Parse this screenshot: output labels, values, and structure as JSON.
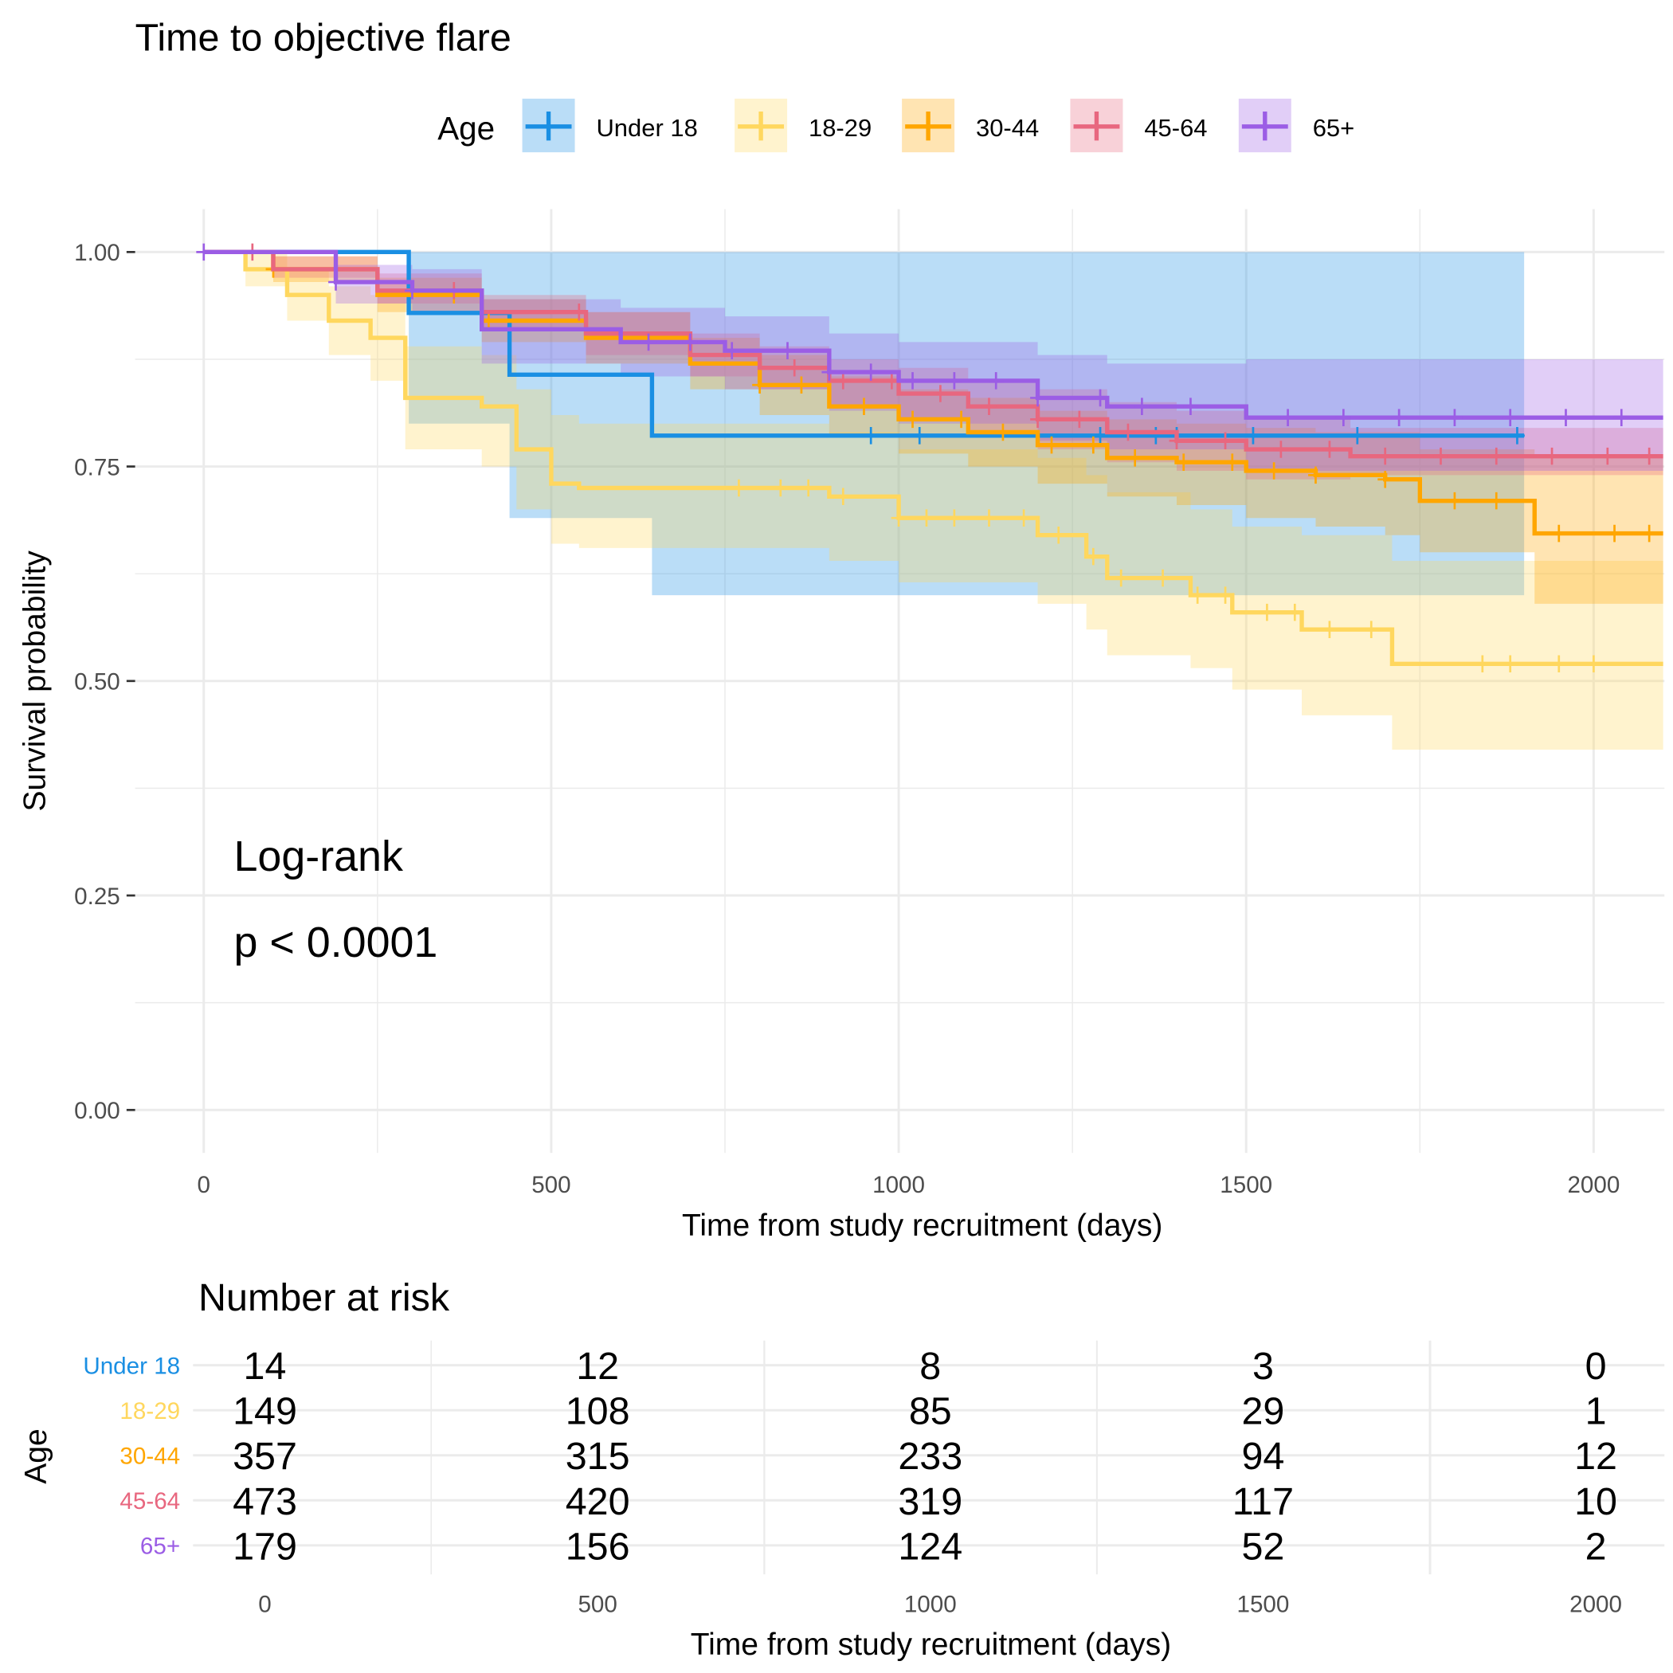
{
  "chart_data": {
    "type": "line",
    "title": "Time to objective flare",
    "xlabel": "Time from study recruitment (days)",
    "ylabel": "Survival probability",
    "xlim": [
      0,
      2100
    ],
    "ylim": [
      0,
      1
    ],
    "x_ticks": [
      "0",
      "500",
      "1000",
      "1500",
      "2000"
    ],
    "x_tick_values": [
      0,
      500,
      1000,
      1500,
      2000
    ],
    "y_ticks": [
      "0.00",
      "0.25",
      "0.50",
      "0.75",
      "1.00"
    ],
    "y_tick_values": [
      0,
      0.25,
      0.5,
      0.75,
      1
    ],
    "grid": true,
    "legend": {
      "title": "Age",
      "placement": "top"
    },
    "annotation": {
      "line1": "Log-rank",
      "line2": "p < 0.0001"
    },
    "series": [
      {
        "name": "Under 18",
        "color": "#1a8fe3",
        "t": [
          0,
          295,
          440,
          645,
          1900
        ],
        "s": [
          1.0,
          0.929,
          0.857,
          0.786,
          0.786
        ],
        "lo": [
          1.0,
          0.8,
          0.69,
          0.6,
          0.6
        ],
        "hi": [
          1.0,
          1.0,
          1.0,
          1.0,
          1.0
        ],
        "censor": [
          960,
          1030,
          1290,
          1370,
          1400,
          1510,
          1660,
          1890
        ]
      },
      {
        "name": "18-29",
        "color": "#ffd75e",
        "t": [
          0,
          60,
          120,
          180,
          240,
          290,
          400,
          450,
          500,
          540,
          900,
          1000,
          1200,
          1270,
          1300,
          1420,
          1480,
          1580,
          1710,
          2100
        ],
        "s": [
          1.0,
          0.98,
          0.95,
          0.92,
          0.9,
          0.83,
          0.82,
          0.77,
          0.73,
          0.725,
          0.715,
          0.69,
          0.67,
          0.645,
          0.62,
          0.6,
          0.58,
          0.56,
          0.52,
          0.52
        ],
        "lo": [
          1.0,
          0.96,
          0.92,
          0.88,
          0.85,
          0.77,
          0.75,
          0.7,
          0.66,
          0.655,
          0.64,
          0.615,
          0.59,
          0.56,
          0.53,
          0.515,
          0.49,
          0.46,
          0.42,
          0.42
        ],
        "hi": [
          1.0,
          1.0,
          0.98,
          0.96,
          0.95,
          0.89,
          0.88,
          0.84,
          0.81,
          0.8,
          0.79,
          0.77,
          0.76,
          0.74,
          0.72,
          0.7,
          0.68,
          0.67,
          0.64,
          0.64
        ],
        "censor": [
          770,
          830,
          870,
          920,
          1000,
          1040,
          1080,
          1130,
          1180,
          1230,
          1280,
          1320,
          1380,
          1430,
          1470,
          1530,
          1570,
          1620,
          1680,
          1840,
          1880,
          1950,
          2000
        ]
      },
      {
        "name": "30-44",
        "color": "#ffa600",
        "t": [
          0,
          100,
          250,
          400,
          550,
          700,
          800,
          900,
          1000,
          1100,
          1200,
          1300,
          1400,
          1500,
          1600,
          1700,
          1750,
          1915,
          2100
        ],
        "s": [
          1.0,
          0.98,
          0.95,
          0.92,
          0.9,
          0.87,
          0.845,
          0.82,
          0.805,
          0.79,
          0.775,
          0.76,
          0.755,
          0.745,
          0.74,
          0.735,
          0.71,
          0.672,
          0.672
        ],
        "lo": [
          1.0,
          0.965,
          0.93,
          0.895,
          0.87,
          0.84,
          0.81,
          0.785,
          0.765,
          0.75,
          0.73,
          0.715,
          0.705,
          0.69,
          0.68,
          0.67,
          0.65,
          0.59,
          0.59
        ],
        "hi": [
          1.0,
          0.995,
          0.97,
          0.945,
          0.93,
          0.9,
          0.88,
          0.855,
          0.84,
          0.83,
          0.815,
          0.805,
          0.8,
          0.795,
          0.79,
          0.79,
          0.77,
          0.76,
          0.76
        ],
        "censor": [
          100,
          360,
          410,
          800,
          860,
          950,
          1020,
          1090,
          1150,
          1220,
          1280,
          1340,
          1410,
          1480,
          1540,
          1600,
          1700,
          1800,
          1860,
          1950,
          2030,
          2080
        ]
      },
      {
        "name": "45-64",
        "color": "#e8677f",
        "t": [
          0,
          100,
          250,
          400,
          550,
          700,
          800,
          900,
          1000,
          1100,
          1200,
          1300,
          1400,
          1500,
          1650,
          2100
        ],
        "s": [
          1.0,
          0.98,
          0.955,
          0.93,
          0.905,
          0.88,
          0.865,
          0.85,
          0.835,
          0.82,
          0.805,
          0.79,
          0.78,
          0.77,
          0.762,
          0.762
        ],
        "lo": [
          1.0,
          0.97,
          0.94,
          0.91,
          0.88,
          0.855,
          0.84,
          0.82,
          0.805,
          0.79,
          0.77,
          0.755,
          0.745,
          0.735,
          0.74,
          0.74
        ],
        "hi": [
          1.0,
          0.995,
          0.975,
          0.95,
          0.93,
          0.905,
          0.89,
          0.875,
          0.865,
          0.85,
          0.84,
          0.825,
          0.815,
          0.805,
          0.795,
          0.795
        ],
        "censor": [
          70,
          190,
          360,
          540,
          850,
          920,
          990,
          1060,
          1130,
          1200,
          1260,
          1330,
          1400,
          1470,
          1550,
          1620,
          1700,
          1780,
          1860,
          1940,
          2020,
          2080
        ]
      },
      {
        "name": "65+",
        "color": "#9b5de5",
        "t": [
          0,
          190,
          300,
          400,
          600,
          750,
          900,
          1000,
          1200,
          1300,
          1500,
          2100
        ],
        "s": [
          1.0,
          0.965,
          0.955,
          0.91,
          0.895,
          0.885,
          0.86,
          0.85,
          0.83,
          0.82,
          0.807,
          0.807
        ],
        "lo": [
          1.0,
          0.94,
          0.93,
          0.87,
          0.855,
          0.84,
          0.815,
          0.8,
          0.78,
          0.77,
          0.745,
          0.745
        ],
        "hi": [
          1.0,
          0.985,
          0.98,
          0.945,
          0.935,
          0.925,
          0.905,
          0.895,
          0.88,
          0.87,
          0.875,
          0.875
        ],
        "censor": [
          0,
          190,
          300,
          640,
          700,
          760,
          840,
          900,
          960,
          1020,
          1080,
          1140,
          1200,
          1290,
          1350,
          1420,
          1560,
          1640,
          1720,
          1800,
          1880,
          1960,
          2040
        ]
      }
    ],
    "risk_table": {
      "title": "Number at risk",
      "ylabel": "Age",
      "xlabel": "Time from study recruitment (days)",
      "times": [
        "0",
        "500",
        "1000",
        "1500",
        "2000"
      ],
      "rows": [
        {
          "name": "Under 18",
          "values": [
            "14",
            "12",
            "8",
            "3",
            "0"
          ]
        },
        {
          "name": "18-29",
          "values": [
            "149",
            "108",
            "85",
            "29",
            "1"
          ]
        },
        {
          "name": "30-44",
          "values": [
            "357",
            "315",
            "233",
            "94",
            "12"
          ]
        },
        {
          "name": "45-64",
          "values": [
            "473",
            "420",
            "319",
            "117",
            "10"
          ]
        },
        {
          "name": "65+",
          "values": [
            "179",
            "156",
            "124",
            "52",
            "2"
          ]
        }
      ]
    }
  }
}
